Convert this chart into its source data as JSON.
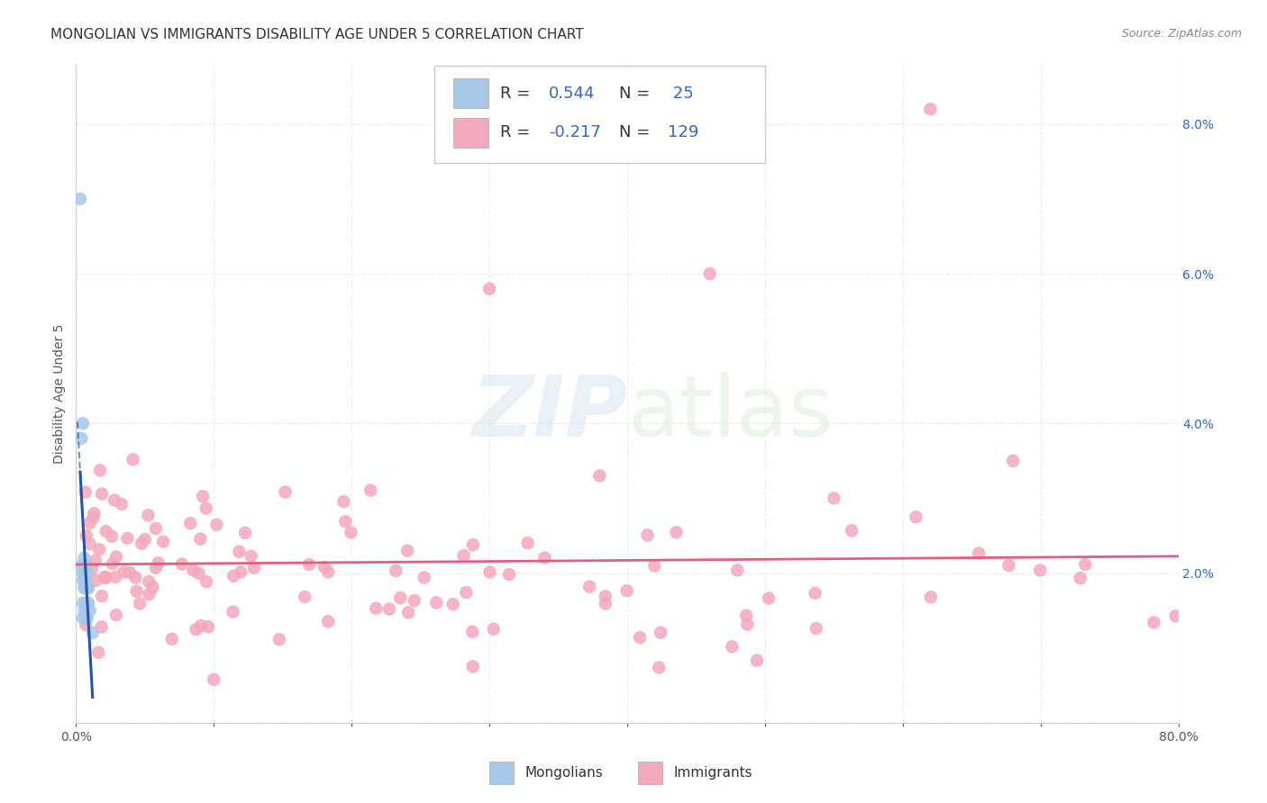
{
  "title": "MONGOLIAN VS IMMIGRANTS DISABILITY AGE UNDER 5 CORRELATION CHART",
  "source": "Source: ZipAtlas.com",
  "ylabel": "Disability Age Under 5",
  "xlim": [
    0.0,
    0.8
  ],
  "ylim": [
    0.0,
    0.088
  ],
  "yticks": [
    0.0,
    0.02,
    0.04,
    0.06,
    0.08
  ],
  "ytick_labels": [
    "",
    "2.0%",
    "4.0%",
    "6.0%",
    "8.0%"
  ],
  "xticks": [
    0.0,
    0.1,
    0.2,
    0.3,
    0.4,
    0.5,
    0.6,
    0.7,
    0.8
  ],
  "xtick_labels": [
    "0.0%",
    "",
    "",
    "",
    "",
    "",
    "",
    "",
    "80.0%"
  ],
  "mongolian_R": 0.544,
  "mongolian_N": 25,
  "immigrant_R": -0.217,
  "immigrant_N": 129,
  "mongolian_color": "#a8c8e8",
  "mongolian_line_color": "#2255aa",
  "immigrant_color": "#f4a8bc",
  "immigrant_line_color": "#e06080",
  "background_color": "#ffffff",
  "grid_color": "#e8e8e8",
  "title_fontsize": 11,
  "axis_label_fontsize": 10,
  "tick_fontsize": 10,
  "legend_fontsize": 13
}
